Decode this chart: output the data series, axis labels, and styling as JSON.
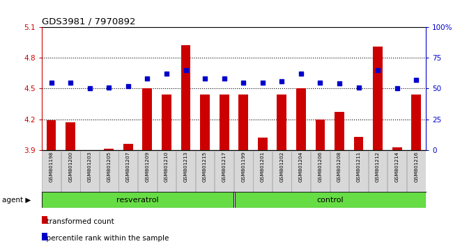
{
  "title": "GDS3981 / 7970892",
  "samples": [
    "GSM801198",
    "GSM801200",
    "GSM801203",
    "GSM801205",
    "GSM801207",
    "GSM801209",
    "GSM801210",
    "GSM801213",
    "GSM801215",
    "GSM801217",
    "GSM801199",
    "GSM801201",
    "GSM801202",
    "GSM801204",
    "GSM801206",
    "GSM801208",
    "GSM801211",
    "GSM801212",
    "GSM801214",
    "GSM801216"
  ],
  "transformed_count": [
    4.19,
    4.17,
    3.895,
    3.91,
    3.96,
    4.5,
    4.44,
    4.92,
    4.44,
    4.44,
    4.44,
    4.02,
    4.44,
    4.5,
    4.2,
    4.27,
    4.03,
    4.91,
    3.93,
    4.44
  ],
  "percentile_rank": [
    55,
    55,
    50,
    51,
    52,
    58,
    62,
    65,
    58,
    58,
    55,
    55,
    56,
    62,
    55,
    54,
    51,
    65,
    50,
    57
  ],
  "resveratrol_count": 10,
  "control_count": 10,
  "group1_label": "resveratrol",
  "group2_label": "control",
  "agent_label": "agent",
  "ylim_left": [
    3.9,
    5.1
  ],
  "ylim_right": [
    0,
    100
  ],
  "yticks_left": [
    3.9,
    4.2,
    4.5,
    4.8,
    5.1
  ],
  "yticks_right": [
    0,
    25,
    50,
    75,
    100
  ],
  "bar_color": "#cc0000",
  "dot_color": "#0000cc",
  "grid_color": "#000000",
  "bg_color": "#ffffff",
  "legend_bar_label": "transformed count",
  "legend_dot_label": "percentile rank within the sample",
  "title_color": "#000000",
  "left_axis_color": "#cc0000",
  "right_axis_color": "#0000cc"
}
